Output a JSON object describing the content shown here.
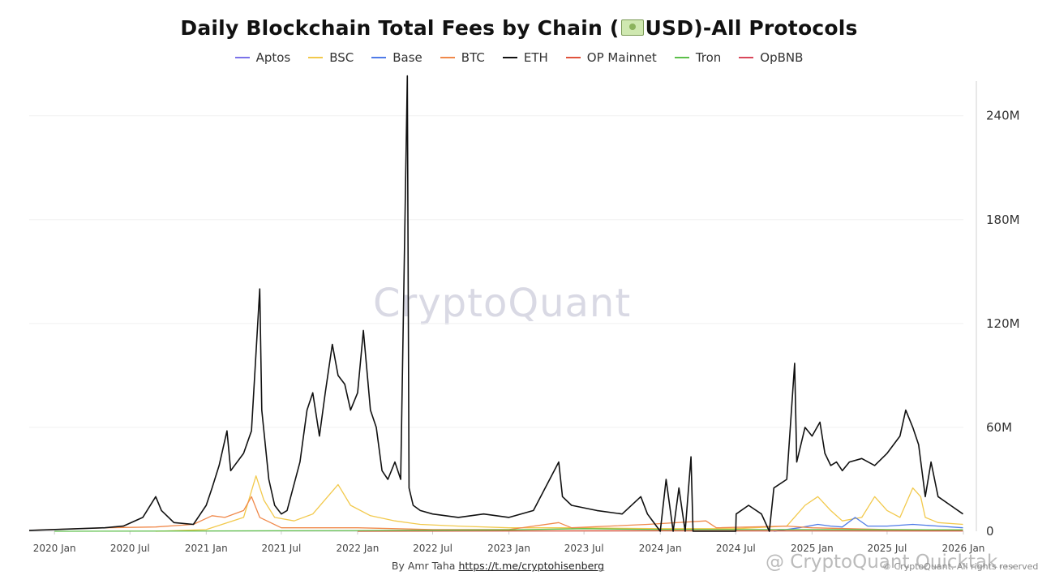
{
  "title_prefix": "Daily Blockchain Total Fees by Chain (",
  "title_suffix": "USD)-All Protocols",
  "watermark": "CryptoQuant",
  "footer": {
    "by": "By Amr Taha",
    "link": "https://t.me/cryptohisenberg"
  },
  "corner_mark": "@ CryptoQuant Quicktak...",
  "copyright": "© CryptoQuant. All rights reserved.",
  "chart_data": {
    "type": "line",
    "title": "Daily Blockchain Total Fees by Chain (USD)-All Protocols",
    "xlabel": "",
    "ylabel": "",
    "ylim": [
      0,
      260000000
    ],
    "y_ticks": [
      0,
      60000000,
      120000000,
      180000000,
      240000000
    ],
    "y_tick_labels": [
      "0",
      "60M",
      "120M",
      "180M",
      "240M"
    ],
    "x_range": [
      "2019-11-01",
      "2026-01-01"
    ],
    "x_ticks": [
      {
        "date": "2020-01-01",
        "label": "2020 Jan"
      },
      {
        "date": "2020-07-01",
        "label": "2020 Jul"
      },
      {
        "date": "2021-01-01",
        "label": "2021 Jan"
      },
      {
        "date": "2021-07-01",
        "label": "2021 Jul"
      },
      {
        "date": "2022-01-01",
        "label": "2022 Jan"
      },
      {
        "date": "2022-07-01",
        "label": "2022 Jul"
      },
      {
        "date": "2023-01-01",
        "label": "2023 Jan"
      },
      {
        "date": "2023-07-01",
        "label": "2023 Jul"
      },
      {
        "date": "2024-01-01",
        "label": "2024 Jan"
      },
      {
        "date": "2024-07-01",
        "label": "2024 Jul"
      },
      {
        "date": "2025-01-01",
        "label": "2025 Jan"
      },
      {
        "date": "2025-07-01",
        "label": "2025 Jul"
      },
      {
        "date": "2026-01-01",
        "label": "2026 Jan"
      }
    ],
    "legend_position": "top-center",
    "series": [
      {
        "name": "Aptos",
        "color": "#7b72e9",
        "points": []
      },
      {
        "name": "BSC",
        "color": "#f2c94c",
        "points": [
          [
            "2020-09-01",
            0
          ],
          [
            "2021-01-01",
            1000000
          ],
          [
            "2021-04-01",
            8000000
          ],
          [
            "2021-05-01",
            32000000
          ],
          [
            "2021-05-20",
            18000000
          ],
          [
            "2021-06-15",
            8000000
          ],
          [
            "2021-08-01",
            6000000
          ],
          [
            "2021-09-15",
            10000000
          ],
          [
            "2021-11-15",
            27000000
          ],
          [
            "2021-12-15",
            15000000
          ],
          [
            "2022-02-01",
            9000000
          ],
          [
            "2022-04-01",
            6000000
          ],
          [
            "2022-06-01",
            4000000
          ],
          [
            "2022-09-01",
            3000000
          ],
          [
            "2023-01-01",
            2000000
          ],
          [
            "2023-06-01",
            2000000
          ],
          [
            "2024-01-01",
            1500000
          ],
          [
            "2024-07-01",
            1500000
          ],
          [
            "2024-11-01",
            3000000
          ],
          [
            "2024-12-15",
            15000000
          ],
          [
            "2025-01-15",
            20000000
          ],
          [
            "2025-02-15",
            12000000
          ],
          [
            "2025-03-15",
            6000000
          ],
          [
            "2025-05-01",
            8000000
          ],
          [
            "2025-06-01",
            20000000
          ],
          [
            "2025-07-01",
            12000000
          ],
          [
            "2025-08-01",
            8000000
          ],
          [
            "2025-09-01",
            25000000
          ],
          [
            "2025-09-20",
            20000000
          ],
          [
            "2025-10-01",
            8000000
          ],
          [
            "2025-11-01",
            5000000
          ],
          [
            "2025-12-31",
            4000000
          ]
        ]
      },
      {
        "name": "Base",
        "color": "#4f7be8",
        "points": [
          [
            "2024-10-01",
            0
          ],
          [
            "2024-12-01",
            2000000
          ],
          [
            "2025-01-15",
            4000000
          ],
          [
            "2025-02-15",
            3000000
          ],
          [
            "2025-03-15",
            2500000
          ],
          [
            "2025-04-15",
            8000000
          ],
          [
            "2025-05-15",
            3000000
          ],
          [
            "2025-07-01",
            3000000
          ],
          [
            "2025-09-01",
            4000000
          ],
          [
            "2025-11-01",
            3000000
          ],
          [
            "2025-12-31",
            2000000
          ]
        ]
      },
      {
        "name": "BTC",
        "color": "#f0894b",
        "points": [
          [
            "2019-11-01",
            500000
          ],
          [
            "2020-05-01",
            2000000
          ],
          [
            "2020-09-01",
            2500000
          ],
          [
            "2020-12-01",
            4000000
          ],
          [
            "2021-01-15",
            9000000
          ],
          [
            "2021-02-15",
            8000000
          ],
          [
            "2021-04-01",
            12000000
          ],
          [
            "2021-04-20",
            20000000
          ],
          [
            "2021-05-10",
            8000000
          ],
          [
            "2021-07-01",
            2000000
          ],
          [
            "2022-01-01",
            2000000
          ],
          [
            "2022-07-01",
            1000000
          ],
          [
            "2023-01-01",
            1000000
          ],
          [
            "2023-05-01",
            5000000
          ],
          [
            "2023-06-01",
            2000000
          ],
          [
            "2023-12-01",
            4000000
          ],
          [
            "2024-04-20",
            6000000
          ],
          [
            "2024-05-15",
            2000000
          ],
          [
            "2024-11-01",
            3000000
          ],
          [
            "2025-01-01",
            2000000
          ],
          [
            "2025-07-01",
            1000000
          ],
          [
            "2025-12-31",
            800000
          ]
        ]
      },
      {
        "name": "ETH",
        "color": "#111111",
        "points": [
          [
            "2019-11-01",
            500000
          ],
          [
            "2020-05-01",
            2000000
          ],
          [
            "2020-06-15",
            3000000
          ],
          [
            "2020-08-01",
            8000000
          ],
          [
            "2020-09-01",
            20000000
          ],
          [
            "2020-09-15",
            12000000
          ],
          [
            "2020-10-15",
            5000000
          ],
          [
            "2020-12-01",
            4000000
          ],
          [
            "2021-01-01",
            15000000
          ],
          [
            "2021-01-15",
            25000000
          ],
          [
            "2021-02-01",
            38000000
          ],
          [
            "2021-02-20",
            58000000
          ],
          [
            "2021-03-01",
            35000000
          ],
          [
            "2021-04-01",
            45000000
          ],
          [
            "2021-04-20",
            58000000
          ],
          [
            "2021-05-10",
            140000000
          ],
          [
            "2021-05-15",
            70000000
          ],
          [
            "2021-06-01",
            30000000
          ],
          [
            "2021-06-15",
            15000000
          ],
          [
            "2021-07-01",
            10000000
          ],
          [
            "2021-07-15",
            12000000
          ],
          [
            "2021-08-15",
            40000000
          ],
          [
            "2021-09-01",
            70000000
          ],
          [
            "2021-09-15",
            80000000
          ],
          [
            "2021-10-01",
            55000000
          ],
          [
            "2021-10-15",
            80000000
          ],
          [
            "2021-11-01",
            108000000
          ],
          [
            "2021-11-15",
            90000000
          ],
          [
            "2021-12-01",
            85000000
          ],
          [
            "2021-12-15",
            70000000
          ],
          [
            "2022-01-01",
            80000000
          ],
          [
            "2022-01-15",
            116000000
          ],
          [
            "2022-02-01",
            70000000
          ],
          [
            "2022-02-15",
            60000000
          ],
          [
            "2022-03-01",
            35000000
          ],
          [
            "2022-03-15",
            30000000
          ],
          [
            "2022-04-01",
            40000000
          ],
          [
            "2022-04-15",
            30000000
          ],
          [
            "2022-05-01",
            263000000
          ],
          [
            "2022-05-05",
            25000000
          ],
          [
            "2022-05-15",
            15000000
          ],
          [
            "2022-06-01",
            12000000
          ],
          [
            "2022-07-01",
            10000000
          ],
          [
            "2022-09-01",
            8000000
          ],
          [
            "2022-11-01",
            10000000
          ],
          [
            "2023-01-01",
            8000000
          ],
          [
            "2023-03-01",
            12000000
          ],
          [
            "2023-05-01",
            40000000
          ],
          [
            "2023-05-10",
            20000000
          ],
          [
            "2023-06-01",
            15000000
          ],
          [
            "2023-08-01",
            12000000
          ],
          [
            "2023-10-01",
            10000000
          ],
          [
            "2023-11-15",
            20000000
          ],
          [
            "2023-12-01",
            10000000
          ],
          [
            "2024-01-01",
            0
          ],
          [
            "2024-01-15",
            30000000
          ],
          [
            "2024-02-01",
            0
          ],
          [
            "2024-02-15",
            25000000
          ],
          [
            "2024-03-01",
            0
          ],
          [
            "2024-03-15",
            43000000
          ],
          [
            "2024-03-20",
            0
          ],
          [
            "2024-07-01",
            0
          ],
          [
            "2024-07-02",
            10000000
          ],
          [
            "2024-08-01",
            15000000
          ],
          [
            "2024-09-01",
            10000000
          ],
          [
            "2024-09-20",
            0
          ],
          [
            "2024-10-01",
            25000000
          ],
          [
            "2024-11-01",
            30000000
          ],
          [
            "2024-11-20",
            97000000
          ],
          [
            "2024-11-25",
            40000000
          ],
          [
            "2024-12-15",
            60000000
          ],
          [
            "2025-01-01",
            55000000
          ],
          [
            "2025-01-20",
            63000000
          ],
          [
            "2025-02-01",
            45000000
          ],
          [
            "2025-02-15",
            38000000
          ],
          [
            "2025-03-01",
            40000000
          ],
          [
            "2025-03-15",
            35000000
          ],
          [
            "2025-04-01",
            40000000
          ],
          [
            "2025-05-01",
            42000000
          ],
          [
            "2025-06-01",
            38000000
          ],
          [
            "2025-07-01",
            45000000
          ],
          [
            "2025-08-01",
            55000000
          ],
          [
            "2025-08-15",
            70000000
          ],
          [
            "2025-09-01",
            60000000
          ],
          [
            "2025-09-15",
            50000000
          ],
          [
            "2025-10-01",
            20000000
          ],
          [
            "2025-10-15",
            40000000
          ],
          [
            "2025-11-01",
            20000000
          ],
          [
            "2025-12-01",
            15000000
          ],
          [
            "2025-12-31",
            10000000
          ]
        ]
      },
      {
        "name": "OP Mainnet",
        "color": "#e0533d",
        "points": [
          [
            "2022-01-01",
            0
          ],
          [
            "2023-01-01",
            200000
          ],
          [
            "2024-01-01",
            300000
          ],
          [
            "2025-12-31",
            200000
          ]
        ]
      },
      {
        "name": "Tron",
        "color": "#5cbf4a",
        "points": [
          [
            "2020-01-01",
            0
          ],
          [
            "2021-01-01",
            200000
          ],
          [
            "2022-01-01",
            400000
          ],
          [
            "2023-01-01",
            800000
          ],
          [
            "2023-07-01",
            1500000
          ],
          [
            "2024-01-01",
            1000000
          ],
          [
            "2025-01-01",
            1000000
          ],
          [
            "2025-12-31",
            800000
          ]
        ]
      },
      {
        "name": "OpBNB",
        "color": "#d9475b",
        "points": []
      }
    ]
  }
}
